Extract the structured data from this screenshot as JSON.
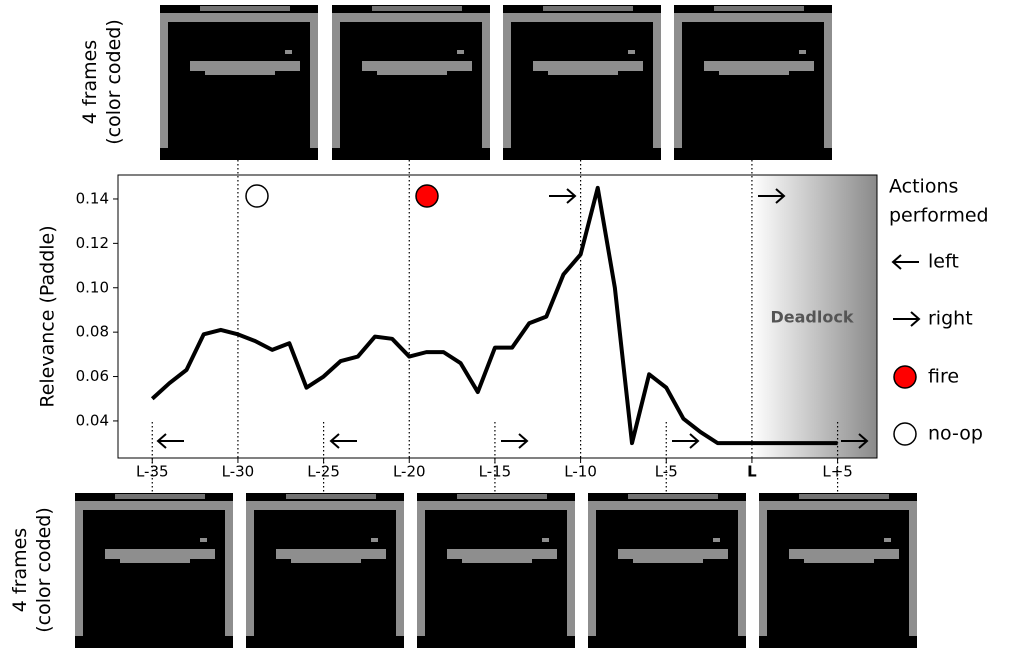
{
  "chart_data": {
    "type": "line",
    "y_label": "Relevance (Paddle)",
    "frame_captions": [
      [
        "4 frames",
        "(color coded)"
      ],
      [
        "4 frames",
        "(color coded)"
      ]
    ],
    "annotation": "Deadlock",
    "legend_title": [
      "Actions",
      "performed"
    ],
    "legend_items": [
      "left",
      "right",
      "fire",
      "no-op"
    ],
    "x": [
      -35,
      -34,
      -33,
      -32,
      -31,
      -30,
      -29,
      -28,
      -27,
      -26,
      -25,
      -24,
      -23,
      -22,
      -21,
      -20,
      -19,
      -18,
      -17,
      -16,
      -15,
      -14,
      -13,
      -12,
      -11,
      -10,
      -9,
      -8,
      -7,
      -6,
      -5,
      -4,
      -3,
      -2,
      -1,
      0,
      1,
      2,
      3,
      4,
      5
    ],
    "values": [
      0.05,
      0.057,
      0.063,
      0.079,
      0.081,
      0.079,
      0.076,
      0.072,
      0.075,
      0.055,
      0.06,
      0.067,
      0.069,
      0.078,
      0.077,
      0.069,
      0.071,
      0.071,
      0.066,
      0.053,
      0.073,
      0.073,
      0.084,
      0.087,
      0.106,
      0.115,
      0.145,
      0.1,
      0.03,
      0.061,
      0.055,
      0.041,
      0.035,
      0.03,
      0.03,
      0.03,
      0.03,
      0.03,
      0.03,
      0.03,
      0.03
    ],
    "color": "#000000",
    "xlim": [
      -37,
      7.3
    ],
    "ylim": [
      0.0233,
      0.1508
    ],
    "xticks": [
      {
        "value": -35,
        "label": "L-35"
      },
      {
        "value": -30,
        "label": "L-30"
      },
      {
        "value": -25,
        "label": "L-25"
      },
      {
        "value": -20,
        "label": "L-20"
      },
      {
        "value": -15,
        "label": "L-15"
      },
      {
        "value": -10,
        "label": "L-10"
      },
      {
        "value": -5,
        "label": "L-5"
      },
      {
        "value": 0,
        "label": "L"
      },
      {
        "value": 5,
        "label": "L+5"
      }
    ],
    "yticks": [
      0.04,
      0.06,
      0.08,
      {
        "value": 0.1,
        "label": "0.10"
      },
      0.12,
      0.14
    ],
    "deadlock_from": 0
  }
}
